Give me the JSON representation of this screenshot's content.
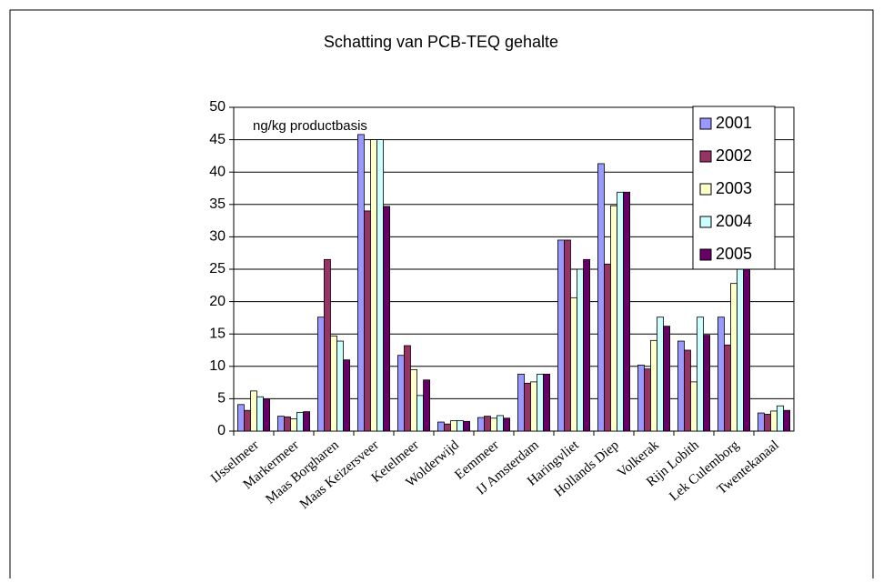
{
  "chart_data": {
    "type": "bar",
    "title": "Schatting van PCB-TEQ gehalte",
    "annotation": "ng/kg productbasis",
    "categories": [
      "IJsselmeer",
      "Markermeer",
      "Maas Borgharen",
      "Maas Keizersveer",
      "Ketelmeer",
      "Wolderwijd",
      "Eemmeer",
      "IJ Amsterdam",
      "Haringvliet",
      "Hollands Diep",
      "Volkerak",
      "Rijn Lobith",
      "Lek Culemborg",
      "Twentekanaal"
    ],
    "series": [
      {
        "name": "2001",
        "color": "#9999ff",
        "values": [
          4.1,
          2.3,
          17.6,
          45.8,
          11.7,
          1.4,
          2.1,
          8.8,
          29.5,
          41.3,
          10.2,
          13.9,
          17.6,
          2.8
        ]
      },
      {
        "name": "2002",
        "color": "#993366",
        "values": [
          3.2,
          2.2,
          26.5,
          34.0,
          13.2,
          1.1,
          2.3,
          7.4,
          29.5,
          25.8,
          9.6,
          12.5,
          13.3,
          2.6
        ]
      },
      {
        "name": "2003",
        "color": "#ffffcc",
        "values": [
          6.2,
          1.9,
          14.7,
          45.0,
          9.5,
          1.6,
          2.0,
          7.6,
          20.6,
          34.8,
          14.0,
          7.6,
          22.8,
          3.1
        ]
      },
      {
        "name": "2004",
        "color": "#ccffff",
        "values": [
          5.3,
          2.9,
          13.9,
          45.0,
          5.5,
          1.6,
          2.4,
          8.8,
          25.0,
          36.9,
          17.6,
          17.6,
          28.8,
          3.9
        ]
      },
      {
        "name": "2005",
        "color": "#660066",
        "values": [
          5.0,
          3.0,
          11.0,
          34.7,
          7.9,
          1.5,
          2.0,
          8.8,
          26.5,
          36.9,
          16.2,
          14.8,
          28.0,
          3.2
        ]
      }
    ],
    "ylim": [
      0,
      50
    ],
    "yticks": [
      0,
      5,
      10,
      15,
      20,
      25,
      30,
      35,
      40,
      45,
      50
    ],
    "grid": true
  }
}
